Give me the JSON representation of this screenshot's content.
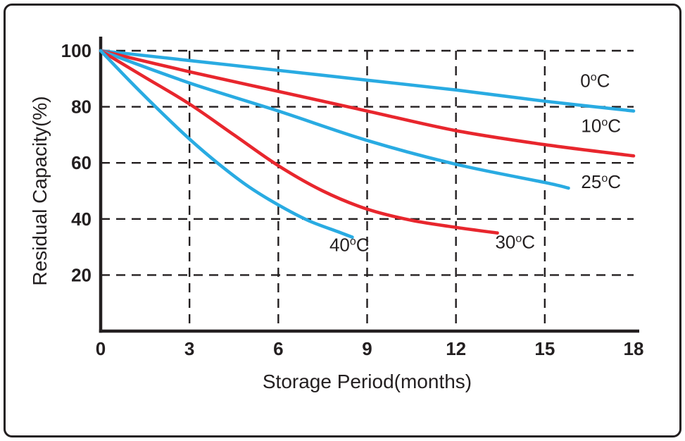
{
  "chart_data": {
    "type": "line",
    "title": "",
    "xlabel": "Storage Period(months)",
    "ylabel": "Residual Capacity(%)",
    "xlim": [
      0,
      18
    ],
    "ylim": [
      0,
      100
    ],
    "xticks": [
      0,
      3,
      6,
      9,
      12,
      15,
      18
    ],
    "yticks": [
      20,
      40,
      60,
      80,
      100
    ],
    "grid": "dashed",
    "legend_position": "inline-labels",
    "axis_color": "#231f20",
    "colors": {
      "cyan": "#29abe2",
      "red": "#e8262d",
      "text": "#231f20"
    },
    "series": [
      {
        "name": "0°C",
        "color": "#29abe2",
        "points": [
          [
            0,
            100
          ],
          [
            3,
            96.5
          ],
          [
            6,
            93
          ],
          [
            9,
            89.5
          ],
          [
            12,
            86
          ],
          [
            15,
            82
          ],
          [
            18,
            78.5
          ]
        ],
        "label": {
          "text": "0°C",
          "x": 16.7,
          "y": 87
        }
      },
      {
        "name": "10°C",
        "color": "#e8262d",
        "points": [
          [
            0,
            100
          ],
          [
            3,
            92.5
          ],
          [
            6,
            85.5
          ],
          [
            9,
            78.5
          ],
          [
            12,
            71.5
          ],
          [
            15,
            66.5
          ],
          [
            18,
            62.5
          ]
        ],
        "label": {
          "text": "10°C",
          "x": 16.9,
          "y": 71
        }
      },
      {
        "name": "25°C",
        "color": "#29abe2",
        "points": [
          [
            0,
            100
          ],
          [
            3,
            88.5
          ],
          [
            6,
            78.5
          ],
          [
            9,
            68
          ],
          [
            12,
            59.5
          ],
          [
            15,
            53
          ],
          [
            15.8,
            51
          ]
        ],
        "label": {
          "text": "25°C",
          "x": 16.9,
          "y": 51
        }
      },
      {
        "name": "30°C",
        "color": "#e8262d",
        "points": [
          [
            0,
            100
          ],
          [
            1.5,
            90.5
          ],
          [
            3,
            81
          ],
          [
            4.5,
            70
          ],
          [
            6,
            59
          ],
          [
            7.5,
            50
          ],
          [
            9,
            43.5
          ],
          [
            10.5,
            39.5
          ],
          [
            12,
            37
          ],
          [
            13.4,
            35
          ]
        ],
        "label": {
          "text": "30°C",
          "x": 14.0,
          "y": 29.5
        }
      },
      {
        "name": "40°C",
        "color": "#29abe2",
        "points": [
          [
            0,
            100
          ],
          [
            1,
            89
          ],
          [
            2,
            78.5
          ],
          [
            3,
            68.5
          ],
          [
            4,
            59.5
          ],
          [
            5,
            51.5
          ],
          [
            6,
            45
          ],
          [
            7,
            39.5
          ],
          [
            8,
            35.5
          ],
          [
            8.5,
            33.5
          ]
        ],
        "label": {
          "text": "40°C",
          "x": 8.4,
          "y": 28.5
        }
      }
    ]
  }
}
